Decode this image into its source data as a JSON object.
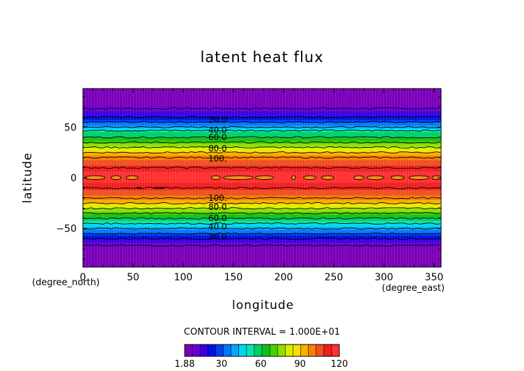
{
  "chart_data": {
    "type": "heatmap",
    "title": "latent heat flux",
    "xlabel": "longitude",
    "ylabel": "latitude",
    "x_unit": "(degree_east)",
    "y_unit": "(degree_north)",
    "xlim": [
      0,
      357
    ],
    "ylim": [
      -88,
      88
    ],
    "x_ticks": [
      0,
      50,
      100,
      150,
      200,
      250,
      300,
      350
    ],
    "y_ticks": [
      -50,
      0,
      50
    ],
    "contour_interval_text": "CONTOUR INTERVAL = 1.000E+01",
    "colorbar": {
      "min": 1.88,
      "max": 120,
      "tick_labels": [
        "1.88",
        "30",
        "60",
        "90",
        "120"
      ],
      "tick_values": [
        1.88,
        30,
        60,
        90,
        120
      ],
      "colors": [
        "#7a00b8",
        "#6a00d0",
        "#3c00e0",
        "#0010e8",
        "#0040f0",
        "#0078f8",
        "#00a8ff",
        "#00d8f0",
        "#00e8b0",
        "#00d060",
        "#10c020",
        "#48d000",
        "#90e000",
        "#d8f000",
        "#f8e000",
        "#f8b000",
        "#f88000",
        "#f05020",
        "#f02020",
        "#ff3030"
      ]
    },
    "latitude_profile": [
      {
        "lat": 88,
        "value": 2
      },
      {
        "lat": 75,
        "value": 4
      },
      {
        "lat": 70,
        "value": 8
      },
      {
        "lat": 65,
        "value": 14
      },
      {
        "lat": 60,
        "value": 20
      },
      {
        "lat": 55,
        "value": 30
      },
      {
        "lat": 50,
        "value": 40
      },
      {
        "lat": 45,
        "value": 55
      },
      {
        "lat": 40,
        "value": 60
      },
      {
        "lat": 35,
        "value": 70
      },
      {
        "lat": 30,
        "value": 80
      },
      {
        "lat": 25,
        "value": 90
      },
      {
        "lat": 20,
        "value": 100
      },
      {
        "lat": 15,
        "value": 105
      },
      {
        "lat": 10,
        "value": 110
      },
      {
        "lat": 5,
        "value": 115
      },
      {
        "lat": 0,
        "value": 120
      },
      {
        "lat": -5,
        "value": 114
      },
      {
        "lat": -10,
        "value": 110
      },
      {
        "lat": -15,
        "value": 105
      },
      {
        "lat": -20,
        "value": 100
      },
      {
        "lat": -25,
        "value": 90
      },
      {
        "lat": -30,
        "value": 80
      },
      {
        "lat": -35,
        "value": 70
      },
      {
        "lat": -40,
        "value": 60
      },
      {
        "lat": -45,
        "value": 50
      },
      {
        "lat": -50,
        "value": 40
      },
      {
        "lat": -55,
        "value": 30
      },
      {
        "lat": -60,
        "value": 20
      },
      {
        "lat": -65,
        "value": 12
      },
      {
        "lat": -70,
        "value": 6
      },
      {
        "lat": -80,
        "value": 3
      },
      {
        "lat": -88,
        "value": 2
      }
    ],
    "contour_labels": [
      {
        "text": "20.0",
        "lat": 57,
        "lon": 125
      },
      {
        "text": "40.0",
        "lat": 47,
        "lon": 125
      },
      {
        "text": "60.0",
        "lat": 40,
        "lon": 125
      },
      {
        "text": "80.0",
        "lat": 29,
        "lon": 125
      },
      {
        "text": "100.",
        "lat": 19,
        "lon": 125
      },
      {
        "text": "100.",
        "lat": -20,
        "lon": 125
      },
      {
        "text": "80.0",
        "lat": -29,
        "lon": 125
      },
      {
        "text": "60.0",
        "lat": -40,
        "lon": 125
      },
      {
        "text": "40.0",
        "lat": -48,
        "lon": 125
      },
      {
        "text": "20.0",
        "lat": -58,
        "lon": 125
      }
    ]
  }
}
